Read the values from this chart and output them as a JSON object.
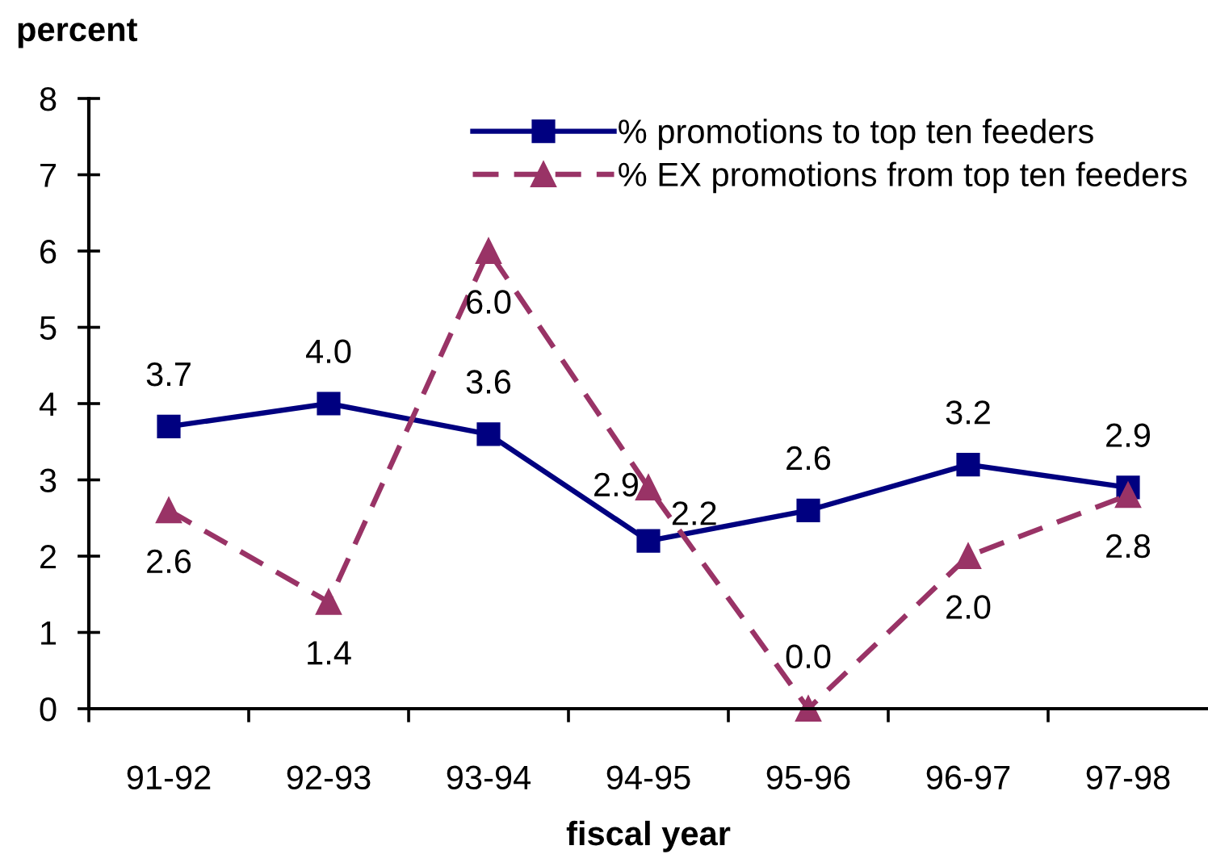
{
  "chart_data": {
    "type": "line",
    "xlabel": "fiscal year",
    "ylabel": "percent",
    "categories": [
      "91-92",
      "92-93",
      "93-94",
      "94-95",
      "95-96",
      "96-97",
      "97-98"
    ],
    "series": [
      {
        "name": "% promotions to top ten feeders",
        "color": "#000080",
        "values": [
          3.7,
          4.0,
          3.6,
          2.2,
          2.6,
          3.2,
          2.9
        ],
        "value_labels": [
          "3.7",
          "4.0",
          "3.6",
          "2.2",
          "2.6",
          "3.2",
          "2.9"
        ],
        "marker": "square",
        "line_style": "solid"
      },
      {
        "name": "% EX promotions from top ten feeders",
        "color": "#993366",
        "values": [
          2.6,
          1.4,
          6.0,
          2.9,
          0.0,
          2.0,
          2.8
        ],
        "value_labels": [
          "2.6",
          "1.4",
          "6.0",
          "2.9",
          "0.0",
          "2.0",
          "2.8"
        ],
        "marker": "triangle",
        "line_style": "dashed"
      }
    ],
    "ylim": [
      0,
      8
    ],
    "yticks": [
      0,
      1,
      2,
      3,
      4,
      5,
      6,
      7,
      8
    ],
    "legend": "top right",
    "grid": false
  }
}
